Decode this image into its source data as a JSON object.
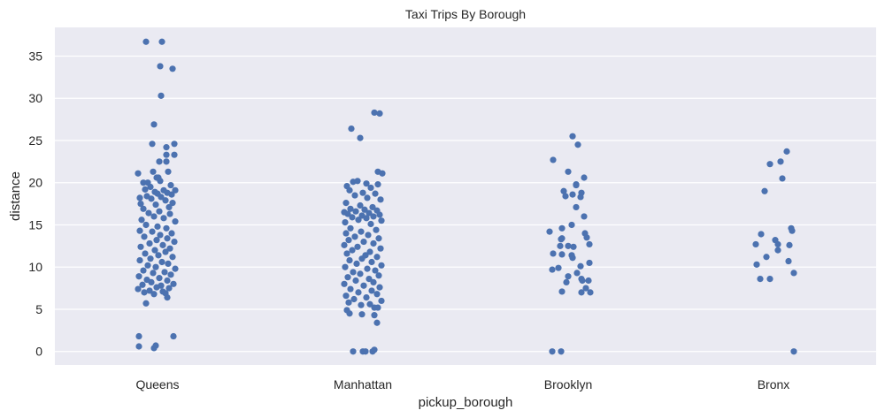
{
  "chart_data": {
    "type": "scatter",
    "subtype": "stripplot",
    "title": "Taxi Trips By Borough",
    "xlabel": "pickup_borough",
    "ylabel": "distance",
    "categories": [
      "Queens",
      "Manhattan",
      "Brooklyn",
      "Bronx"
    ],
    "yticks": [
      0,
      5,
      10,
      15,
      20,
      25,
      30,
      35
    ],
    "ylim": [
      -1.6,
      38.4
    ],
    "grid": true,
    "legend": null,
    "colors": {
      "background": "#eaeaf2",
      "grid": "#ffffff",
      "point": "#4c72b0"
    },
    "series": [
      {
        "name": "Queens",
        "points": [
          [
            -13,
            36.7
          ],
          [
            5,
            36.7
          ],
          [
            3,
            33.8
          ],
          [
            17,
            33.5
          ],
          [
            4,
            30.3
          ],
          [
            -4,
            26.9
          ],
          [
            -6,
            24.6
          ],
          [
            19,
            24.6
          ],
          [
            10,
            24.2
          ],
          [
            19,
            23.3
          ],
          [
            10,
            23.3
          ],
          [
            2,
            22.5
          ],
          [
            10,
            22.5
          ],
          [
            -22,
            21.1
          ],
          [
            -5,
            21.3
          ],
          [
            12,
            21.3
          ],
          [
            1,
            20.6
          ],
          [
            -1,
            20.6
          ],
          [
            -16,
            20
          ],
          [
            -11,
            20
          ],
          [
            3,
            20.2
          ],
          [
            15,
            19.7
          ],
          [
            -8,
            19.5
          ],
          [
            -14,
            19.2
          ],
          [
            7,
            19.1
          ],
          [
            20,
            19.1
          ],
          [
            -3,
            18.9
          ],
          [
            0,
            18.7
          ],
          [
            16,
            18.6
          ],
          [
            11,
            18.8
          ],
          [
            -20,
            18.2
          ],
          [
            -12,
            18.4
          ],
          [
            4,
            18.3
          ],
          [
            -7,
            18.1
          ],
          [
            9,
            17.9
          ],
          [
            17,
            17.6
          ],
          [
            -19,
            17.5
          ],
          [
            -2,
            17.4
          ],
          [
            13,
            17.1
          ],
          [
            -16,
            16.9
          ],
          [
            2,
            16.6
          ],
          [
            -10,
            16.4
          ],
          [
            14,
            16.3
          ],
          [
            -4,
            16
          ],
          [
            7,
            15.8
          ],
          [
            -18,
            15.6
          ],
          [
            20,
            15.4
          ],
          [
            -13,
            15
          ],
          [
            0,
            14.8
          ],
          [
            10,
            14.6
          ],
          [
            -20,
            14.3
          ],
          [
            -6,
            14.2
          ],
          [
            16,
            14
          ],
          [
            3,
            13.8
          ],
          [
            -15,
            13.6
          ],
          [
            11,
            13.4
          ],
          [
            -1,
            13.2
          ],
          [
            19,
            13
          ],
          [
            -9,
            12.8
          ],
          [
            6,
            12.6
          ],
          [
            -19,
            12.4
          ],
          [
            14,
            12.2
          ],
          [
            -3,
            12
          ],
          [
            9,
            11.8
          ],
          [
            -14,
            11.6
          ],
          [
            1,
            11.4
          ],
          [
            17,
            11.2
          ],
          [
            -8,
            11
          ],
          [
            -20,
            10.8
          ],
          [
            5,
            10.6
          ],
          [
            12,
            10.4
          ],
          [
            -11,
            10.2
          ],
          [
            -2,
            10
          ],
          [
            20,
            9.8
          ],
          [
            -16,
            9.6
          ],
          [
            8,
            9.4
          ],
          [
            -5,
            9.3
          ],
          [
            15,
            9.1
          ],
          [
            -21,
            8.9
          ],
          [
            2,
            8.7
          ],
          [
            -12,
            8.5
          ],
          [
            11,
            8.4
          ],
          [
            -7,
            8.2
          ],
          [
            18,
            8
          ],
          [
            -17,
            7.9
          ],
          [
            4,
            7.8
          ],
          [
            -1,
            7.6
          ],
          [
            13,
            7.5
          ],
          [
            -22,
            7.4
          ],
          [
            -9,
            7.2
          ],
          [
            6,
            7.1
          ],
          [
            -15,
            7
          ],
          [
            9,
            6.9
          ],
          [
            -4,
            6.8
          ],
          [
            11,
            6.4
          ],
          [
            -13,
            5.7
          ],
          [
            -21,
            1.8
          ],
          [
            18,
            1.8
          ],
          [
            -21,
            0.6
          ],
          [
            -2,
            0.7
          ],
          [
            -4,
            0.4
          ]
        ]
      },
      {
        "name": "Manhattan",
        "points": [
          [
            13,
            28.3
          ],
          [
            19,
            28.2
          ],
          [
            -13,
            26.4
          ],
          [
            -3,
            25.3
          ],
          [
            17,
            21.3
          ],
          [
            22,
            21.1
          ],
          [
            -11,
            20.1
          ],
          [
            4,
            19.9
          ],
          [
            17,
            19.8
          ],
          [
            -18,
            19.6
          ],
          [
            -6,
            20.2
          ],
          [
            9,
            19.4
          ],
          [
            -15,
            19.1
          ],
          [
            0,
            18.8
          ],
          [
            14,
            18.7
          ],
          [
            -9,
            18.5
          ],
          [
            5,
            18.2
          ],
          [
            20,
            18
          ],
          [
            -19,
            17.6
          ],
          [
            -3,
            17.3
          ],
          [
            11,
            17.1
          ],
          [
            -14,
            16.9
          ],
          [
            2,
            16.8
          ],
          [
            16,
            16.7
          ],
          [
            -8,
            16.6
          ],
          [
            -21,
            16.5
          ],
          [
            7,
            16.4
          ],
          [
            -17,
            16.3
          ],
          [
            19,
            16.2
          ],
          [
            -1,
            16.1
          ],
          [
            12,
            16
          ],
          [
            -12,
            15.9
          ],
          [
            4,
            15.8
          ],
          [
            -5,
            15.6
          ],
          [
            21,
            15.5
          ],
          [
            -20,
            15.3
          ],
          [
            9,
            15.1
          ],
          [
            -14,
            14.6
          ],
          [
            15,
            14.4
          ],
          [
            -2,
            14.2
          ],
          [
            -19,
            14
          ],
          [
            6,
            13.8
          ],
          [
            -9,
            13.6
          ],
          [
            18,
            13.4
          ],
          [
            -16,
            13.2
          ],
          [
            1,
            13
          ],
          [
            12,
            12.8
          ],
          [
            -21,
            12.6
          ],
          [
            -6,
            12.4
          ],
          [
            20,
            12.2
          ],
          [
            -12,
            12
          ],
          [
            8,
            11.8
          ],
          [
            -18,
            11.6
          ],
          [
            3,
            11.4
          ],
          [
            16,
            11.2
          ],
          [
            -1,
            11
          ],
          [
            -15,
            10.8
          ],
          [
            10,
            10.6
          ],
          [
            -7,
            10.4
          ],
          [
            21,
            10.2
          ],
          [
            -20,
            10
          ],
          [
            5,
            9.8
          ],
          [
            14,
            9.6
          ],
          [
            -11,
            9.4
          ],
          [
            -3,
            9.2
          ],
          [
            18,
            9
          ],
          [
            -17,
            8.8
          ],
          [
            7,
            8.6
          ],
          [
            -8,
            8.4
          ],
          [
            12,
            8.2
          ],
          [
            -21,
            8
          ],
          [
            1,
            7.8
          ],
          [
            19,
            7.6
          ],
          [
            -14,
            7.4
          ],
          [
            10,
            7.2
          ],
          [
            -5,
            7
          ],
          [
            16,
            6.8
          ],
          [
            -19,
            6.6
          ],
          [
            4,
            6.4
          ],
          [
            -10,
            6.2
          ],
          [
            21,
            6
          ],
          [
            -16,
            5.8
          ],
          [
            8,
            5.6
          ],
          [
            -2,
            5.5
          ],
          [
            17,
            5.2
          ],
          [
            -18,
            4.9
          ],
          [
            -15,
            4.5
          ],
          [
            -1,
            4.4
          ],
          [
            13,
            5.2
          ],
          [
            13,
            4.3
          ],
          [
            16,
            3.4
          ],
          [
            -11,
            0
          ],
          [
            0,
            0
          ],
          [
            3,
            0
          ],
          [
            11,
            0
          ],
          [
            13,
            0.2
          ]
        ]
      },
      {
        "name": "Brooklyn",
        "points": [
          [
            5,
            25.5
          ],
          [
            11,
            24.5
          ],
          [
            -17,
            22.7
          ],
          [
            0,
            21.3
          ],
          [
            18,
            20.6
          ],
          [
            9,
            19.7
          ],
          [
            9,
            19.8
          ],
          [
            -5,
            19
          ],
          [
            5,
            18.6
          ],
          [
            -3,
            18.4
          ],
          [
            15,
            18.8
          ],
          [
            14,
            18.3
          ],
          [
            9,
            17.1
          ],
          [
            18,
            16
          ],
          [
            4,
            15
          ],
          [
            -21,
            14.2
          ],
          [
            -7,
            14.6
          ],
          [
            19,
            14
          ],
          [
            21,
            13.5
          ],
          [
            -7,
            13.4
          ],
          [
            -8,
            13.3
          ],
          [
            24,
            12.7
          ],
          [
            -9,
            12.5
          ],
          [
            0,
            12.5
          ],
          [
            6,
            12.4
          ],
          [
            -17,
            11.6
          ],
          [
            -7,
            11.5
          ],
          [
            4,
            11.4
          ],
          [
            5,
            11.1
          ],
          [
            24,
            10.5
          ],
          [
            14,
            10.1
          ],
          [
            -18,
            9.7
          ],
          [
            -11,
            9.9
          ],
          [
            0,
            8.9
          ],
          [
            10,
            9.3
          ],
          [
            15,
            8.6
          ],
          [
            16,
            8.4
          ],
          [
            23,
            8.4
          ],
          [
            -2,
            8.2
          ],
          [
            20,
            7.5
          ],
          [
            -7,
            7.1
          ],
          [
            15,
            7
          ],
          [
            25,
            7
          ],
          [
            -18,
            0
          ],
          [
            -8,
            0
          ]
        ]
      },
      {
        "name": "Bronx",
        "points": [
          [
            15,
            23.7
          ],
          [
            -4,
            22.2
          ],
          [
            8,
            22.5
          ],
          [
            10,
            20.5
          ],
          [
            -10,
            19
          ],
          [
            20,
            14.6
          ],
          [
            21,
            14.3
          ],
          [
            -14,
            13.9
          ],
          [
            2,
            13.2
          ],
          [
            5,
            12.7
          ],
          [
            -20,
            12.7
          ],
          [
            18,
            12.6
          ],
          [
            5,
            12
          ],
          [
            -8,
            11.2
          ],
          [
            17,
            10.7
          ],
          [
            -19,
            10.3
          ],
          [
            -15,
            8.6
          ],
          [
            -4,
            8.6
          ],
          [
            23,
            9.3
          ],
          [
            23,
            0
          ]
        ]
      }
    ]
  }
}
